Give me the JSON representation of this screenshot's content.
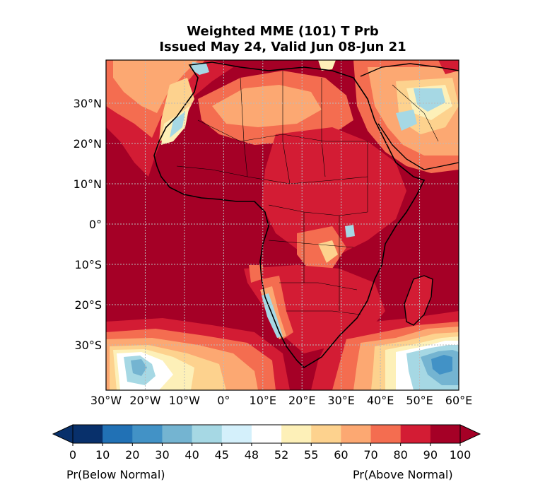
{
  "title": {
    "line1": "Weighted MME (101) T Prb",
    "line2": "Issued May 24, Valid Jun 08-Jun 21"
  },
  "map": {
    "lon_labels": [
      "30°W",
      "20°W",
      "10°W",
      "0°",
      "10°E",
      "20°E",
      "30°E",
      "40°E",
      "50°E",
      "60°E"
    ],
    "lat_labels": [
      "30°N",
      "20°N",
      "10°N",
      "0°",
      "10°S",
      "20°S",
      "30°S"
    ]
  },
  "colorbar": {
    "ticks": [
      "0",
      "10",
      "20",
      "30",
      "40",
      "45",
      "48",
      "52",
      "55",
      "60",
      "70",
      "80",
      "90",
      "100"
    ],
    "colors": [
      "#08306b",
      "#2171b5",
      "#4292c6",
      "#74b4d1",
      "#a6d8e4",
      "#d4f0fb",
      "#ffffff",
      "#fdf0b8",
      "#fdd28e",
      "#fca872",
      "#f46d50",
      "#d31c34",
      "#a50026"
    ],
    "left_label": "Pr(Below Normal)",
    "right_label": "Pr(Above Normal)"
  }
}
